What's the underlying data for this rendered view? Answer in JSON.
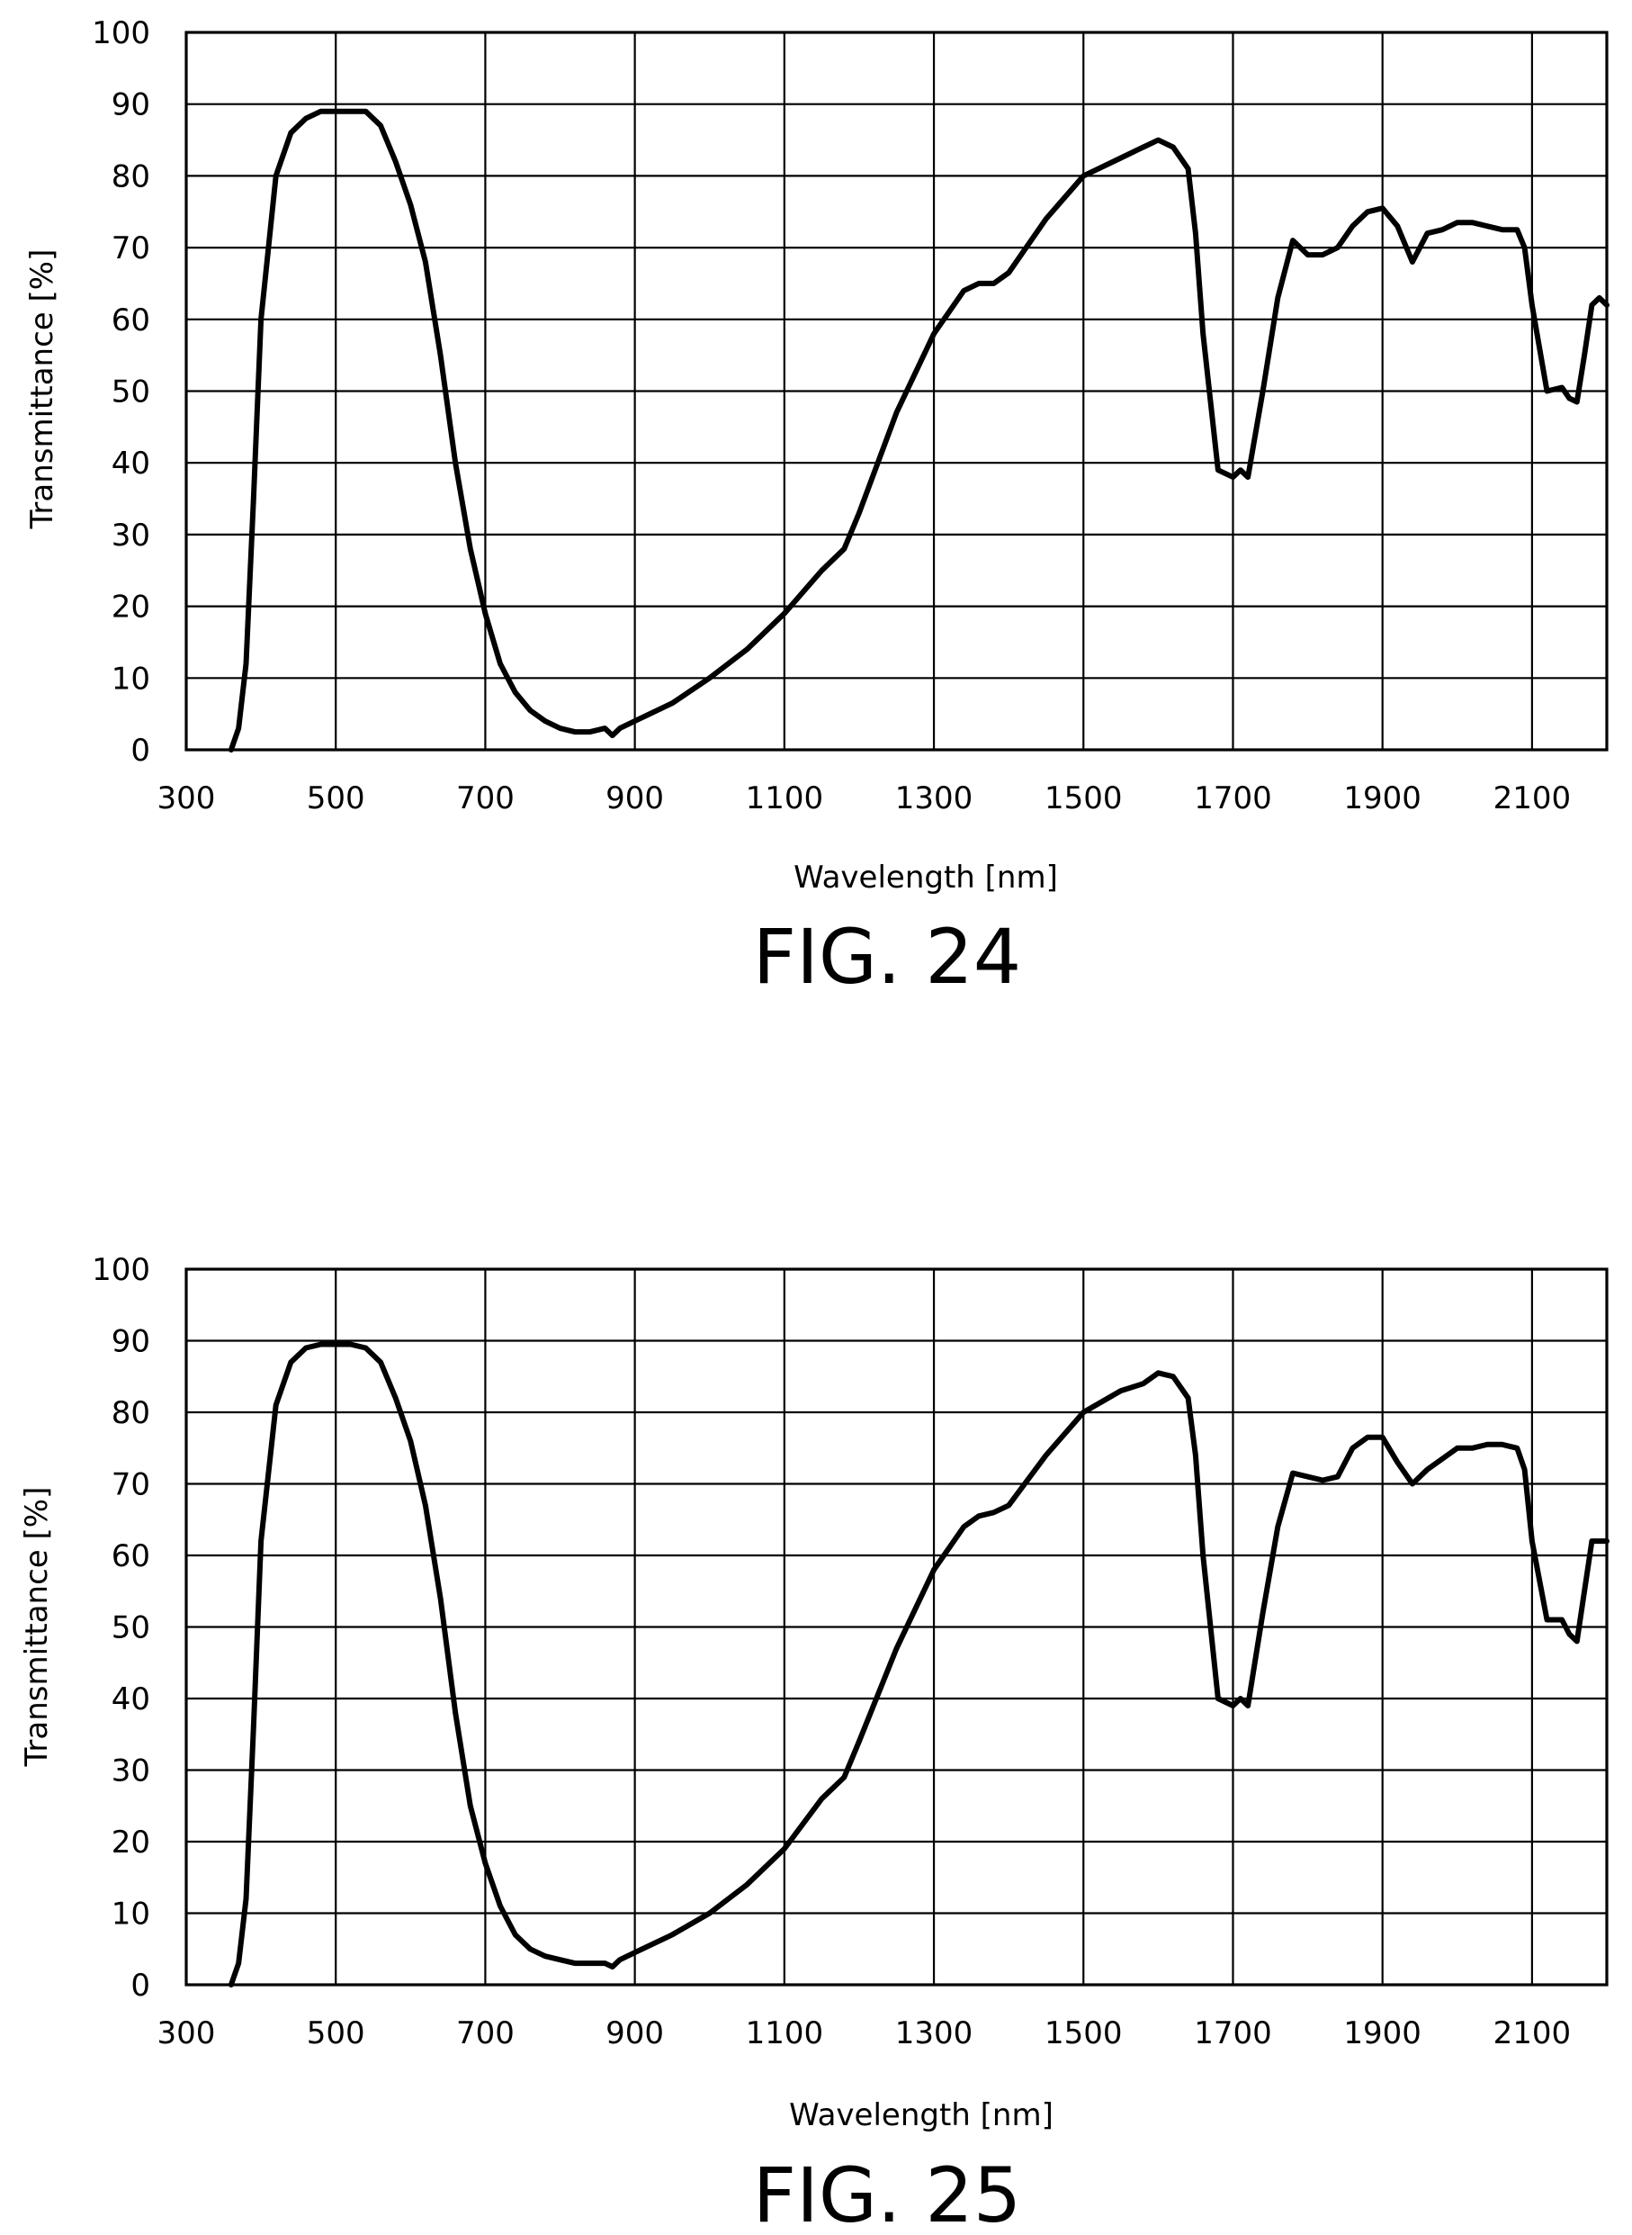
{
  "chart_data": [
    {
      "type": "line",
      "caption": "FIG. 24",
      "xlabel": "Wavelength [nm]",
      "ylabel": "Transmittance [%]",
      "xlim": [
        300,
        2200
      ],
      "ylim": [
        0,
        100
      ],
      "x_ticks": [
        300,
        500,
        700,
        900,
        1100,
        1300,
        1500,
        1700,
        1900,
        2100
      ],
      "y_ticks": [
        0,
        10,
        20,
        30,
        40,
        50,
        60,
        70,
        80,
        90,
        100
      ],
      "grid": true,
      "series": [
        {
          "x": [
            360,
            370,
            380,
            390,
            400,
            420,
            440,
            460,
            480,
            500,
            520,
            540,
            560,
            580,
            600,
            620,
            640,
            660,
            680,
            700,
            720,
            740,
            760,
            780,
            800,
            820,
            840,
            860,
            870,
            880,
            900,
            950,
            1000,
            1050,
            1100,
            1150,
            1180,
            1200,
            1250,
            1300,
            1340,
            1360,
            1380,
            1400,
            1450,
            1500,
            1550,
            1580,
            1600,
            1620,
            1640,
            1650,
            1660,
            1680,
            1700,
            1710,
            1720,
            1740,
            1760,
            1780,
            1800,
            1820,
            1840,
            1860,
            1880,
            1900,
            1920,
            1940,
            1960,
            1980,
            2000,
            2020,
            2040,
            2060,
            2080,
            2090,
            2100,
            2120,
            2140,
            2150,
            2160,
            2170,
            2180,
            2190,
            2200
          ],
          "y": [
            0,
            3,
            12,
            35,
            60,
            80,
            86,
            88,
            89,
            89,
            89,
            89,
            87,
            82,
            76,
            68,
            55,
            40,
            28,
            19,
            12,
            8,
            5.5,
            4,
            3,
            2.5,
            2.5,
            3,
            2,
            3,
            4,
            6.5,
            10,
            14,
            19,
            25,
            28,
            33,
            47,
            58,
            64,
            65,
            65,
            66.5,
            74,
            80,
            82.5,
            84,
            85,
            84,
            81,
            72,
            58,
            39,
            38,
            39,
            38,
            50,
            63,
            71,
            69,
            69,
            70,
            73,
            75,
            75.5,
            73,
            68,
            72,
            72.5,
            73.5,
            73.5,
            73,
            72.5,
            72.5,
            70,
            62,
            50,
            50.5,
            49,
            48.5,
            55,
            62,
            63,
            62
          ]
        }
      ]
    },
    {
      "type": "line",
      "caption": "FIG. 25",
      "xlabel": "Wavelength [nm]",
      "ylabel": "Transmittance [%]",
      "xlim": [
        300,
        2200
      ],
      "ylim": [
        0,
        100
      ],
      "x_ticks": [
        300,
        500,
        700,
        900,
        1100,
        1300,
        1500,
        1700,
        1900,
        2100
      ],
      "y_ticks": [
        0,
        10,
        20,
        30,
        40,
        50,
        60,
        70,
        80,
        90,
        100
      ],
      "grid": true,
      "series": [
        {
          "x": [
            360,
            370,
            380,
            390,
            400,
            420,
            440,
            460,
            480,
            500,
            520,
            540,
            560,
            580,
            600,
            620,
            640,
            660,
            680,
            700,
            720,
            740,
            760,
            780,
            800,
            820,
            840,
            860,
            870,
            880,
            900,
            950,
            1000,
            1050,
            1100,
            1150,
            1180,
            1200,
            1250,
            1300,
            1340,
            1360,
            1380,
            1400,
            1450,
            1500,
            1550,
            1580,
            1600,
            1620,
            1640,
            1650,
            1660,
            1680,
            1700,
            1710,
            1720,
            1740,
            1760,
            1780,
            1800,
            1820,
            1840,
            1860,
            1880,
            1900,
            1920,
            1940,
            1960,
            1980,
            2000,
            2020,
            2040,
            2060,
            2080,
            2090,
            2100,
            2120,
            2140,
            2150,
            2160,
            2170,
            2180,
            2190,
            2200
          ],
          "y": [
            0,
            3,
            12,
            36,
            62,
            81,
            87,
            89,
            89.5,
            89.5,
            89.5,
            89,
            87,
            82,
            76,
            67,
            54,
            38,
            25,
            17,
            11,
            7,
            5,
            4,
            3.5,
            3,
            3,
            3,
            2.5,
            3.5,
            4.5,
            7,
            10,
            14,
            19,
            26,
            29,
            34,
            47,
            58,
            64,
            65.5,
            66,
            67,
            74,
            80,
            83,
            84,
            85.5,
            85,
            82,
            74,
            60,
            40,
            39,
            40,
            39,
            52,
            64,
            71.5,
            71,
            70.5,
            71,
            75,
            76.5,
            76.5,
            73,
            70,
            72,
            73.5,
            75,
            75,
            75.5,
            75.5,
            75,
            72,
            62,
            51,
            51,
            49,
            48,
            55,
            62,
            62,
            62
          ]
        }
      ]
    }
  ]
}
